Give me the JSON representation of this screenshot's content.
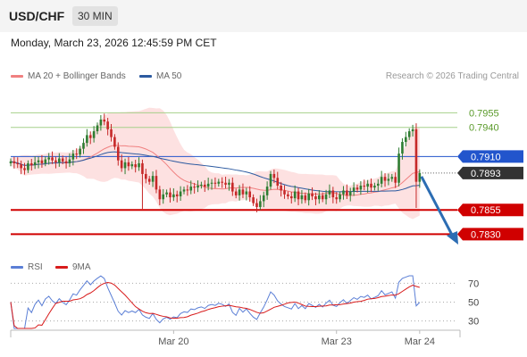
{
  "header": {
    "symbol": "USD/CHF",
    "timeframe": "30 MIN"
  },
  "datetime": "Monday, March 23, 2026 12:45:59 PM CET",
  "legend": [
    {
      "label": "MA 20 + Bollinger Bands",
      "color": "#f08080"
    },
    {
      "label": "MA 50",
      "color": "#2c5aa0"
    }
  ],
  "credit": "Research © 2026 Trading Central",
  "colors": {
    "up": "#2e7d32",
    "down": "#c62828",
    "resistance": "#a6d08a",
    "support": "#d00000",
    "pivot": "#2255cc",
    "arrow": "#2c6db3",
    "band": "#fcd9d9"
  },
  "chart_data": {
    "type": "candlestick",
    "ylim": [
      0.7812,
      0.7982
    ],
    "levels": [
      {
        "value": "0.7955",
        "kind": "resistance"
      },
      {
        "value": "0.7940",
        "kind": "resistance"
      },
      {
        "value": "0.7910",
        "kind": "pivot"
      },
      {
        "value": "0.7893",
        "kind": "current"
      },
      {
        "value": "0.7855",
        "kind": "support"
      },
      {
        "value": "0.7830",
        "kind": "support"
      }
    ],
    "x_ticks": [
      "Mar 20",
      "Mar 23",
      "Mar 24"
    ],
    "close": [
      0.7905,
      0.7903,
      0.7902,
      0.7898,
      0.7896,
      0.7903,
      0.7901,
      0.7904,
      0.7906,
      0.7903,
      0.7907,
      0.7909,
      0.7906,
      0.7904,
      0.7908,
      0.7905,
      0.7903,
      0.7907,
      0.7913,
      0.7912,
      0.7918,
      0.7924,
      0.7932,
      0.7929,
      0.7936,
      0.7942,
      0.7948,
      0.7946,
      0.7938,
      0.793,
      0.792,
      0.7906,
      0.7898,
      0.7904,
      0.79,
      0.7902,
      0.7899,
      0.7903,
      0.7892,
      0.7887,
      0.7884,
      0.789,
      0.7876,
      0.7866,
      0.7871,
      0.7873,
      0.7868,
      0.7871,
      0.7869,
      0.7874,
      0.7876,
      0.7875,
      0.7879,
      0.7878,
      0.788,
      0.7881,
      0.7879,
      0.7882,
      0.7883,
      0.7882,
      0.7884,
      0.7883,
      0.7881,
      0.7883,
      0.7874,
      0.787,
      0.7876,
      0.7871,
      0.7874,
      0.7868,
      0.7862,
      0.7858,
      0.7864,
      0.787,
      0.7879,
      0.7892,
      0.7888,
      0.788,
      0.7875,
      0.7871,
      0.7869,
      0.7867,
      0.7874,
      0.7866,
      0.787,
      0.7865,
      0.7872,
      0.7869,
      0.7866,
      0.787,
      0.7866,
      0.7871,
      0.7875,
      0.7868,
      0.7866,
      0.7871,
      0.7875,
      0.787,
      0.7874,
      0.7878,
      0.7876,
      0.788,
      0.7879,
      0.7882,
      0.7878,
      0.788,
      0.7882,
      0.7889,
      0.7885,
      0.7887,
      0.7889,
      0.7883,
      0.7913,
      0.7925,
      0.793,
      0.7936,
      0.7938,
      0.7884,
      0.7893
    ],
    "rsi": {
      "ylim": [
        22,
        78
      ],
      "ticks": [
        70,
        50,
        30
      ],
      "series": [
        {
          "name": "RSI",
          "color": "#5b7fd6"
        },
        {
          "name": "9MA",
          "color": "#d81b1b"
        }
      ]
    }
  }
}
